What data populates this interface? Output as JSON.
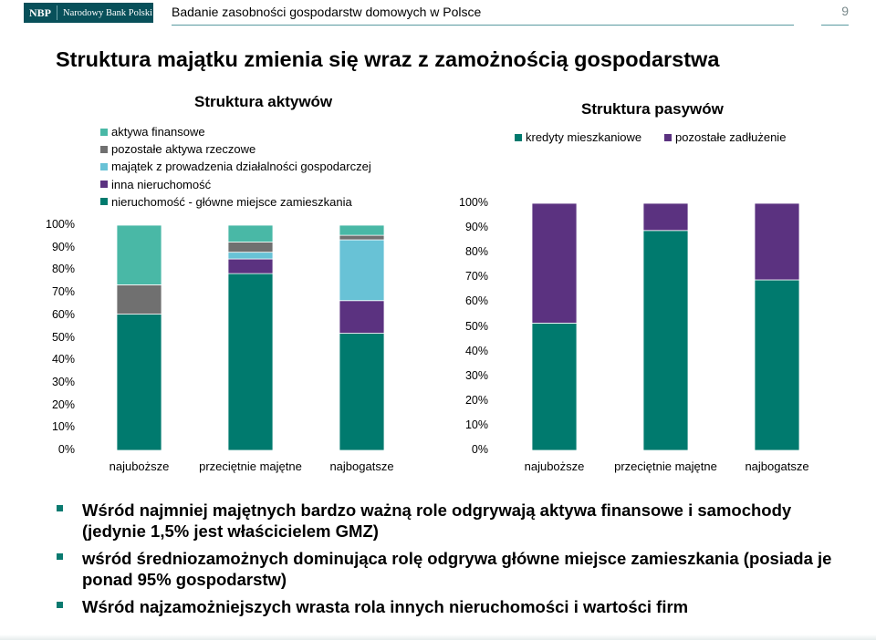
{
  "header": {
    "logo_abbr": "NBP",
    "logo_name": "Narodowy Bank Polski",
    "doc_title": "Badanie zasobności gospodarstw domowych w Polsce",
    "page_number": "9"
  },
  "headline": "Struktura majątku zmienia się wraz z zamożnością gospodarstwa",
  "chart_data": [
    {
      "type": "bar",
      "stacked": true,
      "title": "Struktura aktywów",
      "categories": [
        "najuboższe",
        "przeciętnie majętne",
        "najbogatsze"
      ],
      "ylim": [
        0,
        100
      ],
      "y_ticks": [
        "0%",
        "10%",
        "20%",
        "30%",
        "40%",
        "50%",
        "60%",
        "70%",
        "80%",
        "90%",
        "100%"
      ],
      "legend_position": "top-left",
      "series": [
        {
          "name": "nieruchomość - główne miejsce zamieszkania",
          "color": "#007a6e",
          "values": [
            60.5,
            78.5,
            52.0
          ]
        },
        {
          "name": "inna nieruchomość",
          "color": "#5b3280",
          "values": [
            0.0,
            6.5,
            14.5
          ]
        },
        {
          "name": "majątek z prowadzenia działalności gospodarczej",
          "color": "#68c2d6",
          "values": [
            0.0,
            3.0,
            27.0
          ]
        },
        {
          "name": "pozostałe aktywa rzeczowe",
          "color": "#707070",
          "values": [
            13.0,
            4.5,
            2.0
          ]
        },
        {
          "name": "aktywa finansowe",
          "color": "#49b8a6",
          "values": [
            26.5,
            7.5,
            4.5
          ]
        }
      ]
    },
    {
      "type": "bar",
      "stacked": true,
      "title": "Struktura pasywów",
      "categories": [
        "najuboższe",
        "przeciętnie majętne",
        "najbogatsze"
      ],
      "ylim": [
        0,
        100
      ],
      "y_ticks": [
        "0%",
        "10%",
        "20%",
        "30%",
        "40%",
        "50%",
        "60%",
        "70%",
        "80%",
        "90%",
        "100%"
      ],
      "legend_position": "top",
      "series": [
        {
          "name": "kredyty mieszkaniowe",
          "color": "#007a6e",
          "values": [
            51.5,
            89.0,
            69.0
          ]
        },
        {
          "name": "pozostałe zadłużenie",
          "color": "#5b3280",
          "values": [
            48.5,
            11.0,
            31.0
          ]
        }
      ]
    }
  ],
  "bullets": [
    "Wśród najmniej majętnych bardzo ważną role odgrywają aktywa finansowe i samochody (jedynie 1,5% jest właścicielem GMZ)",
    "wśród średniozamożnych dominująca rolę odgrywa główne miejsce zamieszkania (posiada je ponad 95% gospodarstw)",
    "Wśród najzamożniejszych wrasta rola innych nieruchomości i wartości firm"
  ],
  "colors": {
    "accent": "#007a6e",
    "header_bg": "#08505a"
  }
}
